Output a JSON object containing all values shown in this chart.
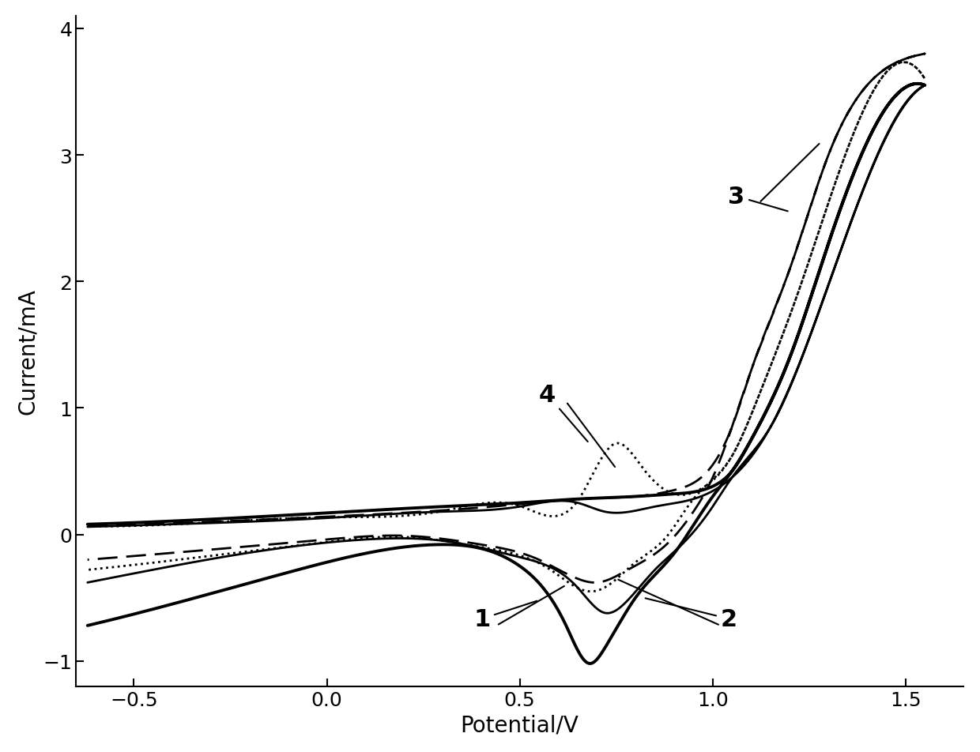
{
  "title": "",
  "xlabel": "Potential/V",
  "ylabel": "Current/mA",
  "xlim": [
    -0.65,
    1.65
  ],
  "ylim": [
    -1.2,
    4.1
  ],
  "xticks": [
    -0.5,
    0.0,
    0.5,
    1.0,
    1.5
  ],
  "yticks": [
    -1,
    0,
    1,
    2,
    3,
    4
  ],
  "background_color": "#ffffff",
  "label_fontsize": 20,
  "tick_fontsize": 18,
  "annotation_fontsize": 22
}
